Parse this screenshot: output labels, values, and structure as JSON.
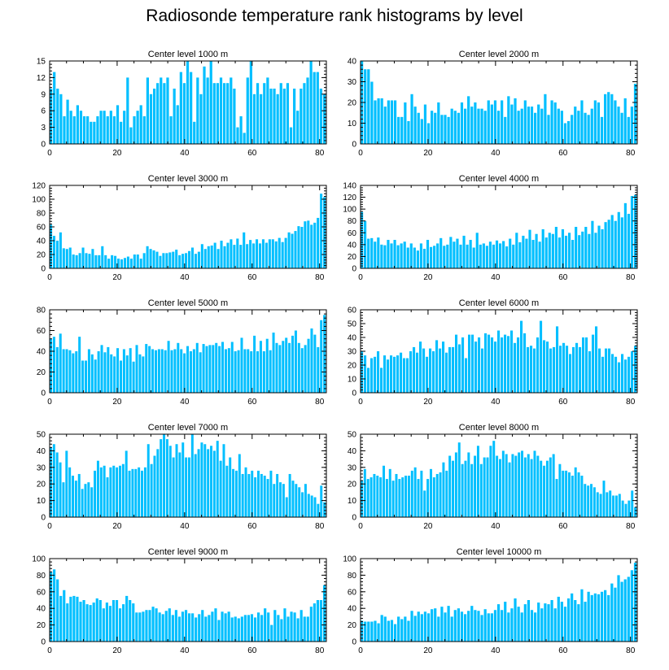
{
  "title": "Radiosonde temperature rank histograms by level",
  "bar_color": "#00bfff",
  "chart_data": [
    {
      "type": "bar",
      "title": "Center level 1000 m",
      "xlim": [
        0,
        82
      ],
      "ylim": [
        0,
        15
      ],
      "xticks": [
        0,
        20,
        40,
        60,
        80
      ],
      "yticks": [
        0,
        3,
        6,
        9,
        12,
        15
      ],
      "values": [
        10,
        13,
        10,
        9,
        5,
        8,
        6,
        5,
        7,
        6,
        5,
        5,
        4,
        4,
        5,
        6,
        6,
        5,
        6,
        5,
        7,
        4,
        6,
        12,
        3,
        5,
        6,
        7,
        5,
        12,
        9,
        10,
        11,
        12,
        11,
        12,
        5,
        10,
        7,
        13,
        11,
        15,
        13,
        4,
        12,
        9,
        14,
        12,
        15,
        11,
        11,
        12,
        11,
        11,
        12,
        10,
        3,
        5,
        2,
        12,
        15,
        9,
        11,
        9,
        11,
        12,
        10,
        10,
        9,
        11,
        10,
        11,
        3,
        10,
        6,
        10,
        11,
        12,
        15,
        13,
        13,
        10,
        9
      ]
    },
    {
      "type": "bar",
      "title": "Center level 2000 m",
      "xlim": [
        0,
        82
      ],
      "ylim": [
        0,
        40
      ],
      "xticks": [
        0,
        20,
        40,
        60,
        80
      ],
      "yticks": [
        0,
        10,
        20,
        30,
        40
      ],
      "values": [
        40,
        36,
        36,
        30,
        21,
        22,
        22,
        18,
        21,
        21,
        21,
        13,
        13,
        20,
        11,
        24,
        18,
        15,
        12,
        19,
        10,
        16,
        15,
        20,
        14,
        14,
        13,
        17,
        16,
        15,
        20,
        17,
        23,
        18,
        20,
        17,
        17,
        16,
        21,
        19,
        21,
        16,
        21,
        13,
        23,
        19,
        22,
        16,
        17,
        21,
        18,
        18,
        15,
        19,
        17,
        24,
        14,
        21,
        20,
        17,
        16,
        10,
        11,
        14,
        18,
        16,
        21,
        15,
        14,
        17,
        21,
        20,
        13,
        24,
        25,
        24,
        21,
        18,
        15,
        22,
        13,
        18,
        29
      ]
    },
    {
      "type": "bar",
      "title": "Center level 3000 m",
      "xlim": [
        0,
        82
      ],
      "ylim": [
        0,
        120
      ],
      "xticks": [
        0,
        20,
        40,
        60,
        80
      ],
      "yticks": [
        0,
        20,
        40,
        60,
        80,
        100,
        120
      ],
      "values": [
        63,
        47,
        40,
        52,
        29,
        28,
        30,
        20,
        19,
        22,
        30,
        22,
        21,
        28,
        19,
        19,
        32,
        19,
        14,
        19,
        18,
        14,
        13,
        15,
        17,
        14,
        20,
        20,
        14,
        22,
        32,
        28,
        26,
        24,
        18,
        22,
        22,
        23,
        24,
        27,
        19,
        21,
        22,
        25,
        30,
        21,
        24,
        35,
        28,
        32,
        33,
        37,
        28,
        40,
        32,
        37,
        42,
        34,
        43,
        34,
        52,
        35,
        41,
        36,
        42,
        36,
        42,
        37,
        42,
        42,
        39,
        44,
        38,
        44,
        52,
        50,
        54,
        61,
        60,
        68,
        69,
        63,
        66,
        73,
        108,
        103
      ]
    },
    {
      "type": "bar",
      "title": "Center level 4000 m",
      "xlim": [
        0,
        82
      ],
      "ylim": [
        0,
        140
      ],
      "xticks": [
        0,
        20,
        40,
        60,
        80
      ],
      "yticks": [
        0,
        20,
        40,
        60,
        80,
        100,
        120,
        140
      ],
      "values": [
        95,
        80,
        50,
        51,
        45,
        52,
        40,
        39,
        48,
        42,
        48,
        39,
        42,
        45,
        35,
        42,
        35,
        30,
        42,
        33,
        48,
        36,
        38,
        42,
        51,
        38,
        40,
        53,
        45,
        50,
        40,
        55,
        40,
        48,
        35,
        60,
        40,
        42,
        38,
        45,
        40,
        47,
        42,
        46,
        37,
        50,
        40,
        60,
        44,
        55,
        50,
        65,
        48,
        58,
        45,
        66,
        52,
        60,
        58,
        70,
        52,
        66,
        55,
        60,
        48,
        70,
        56,
        62,
        70,
        58,
        80,
        60,
        72,
        66,
        78,
        82,
        90,
        80,
        95,
        86,
        110,
        92,
        122,
        124
      ]
    },
    {
      "type": "bar",
      "title": "Center level 5000 m",
      "xlim": [
        0,
        82
      ],
      "ylim": [
        0,
        80
      ],
      "xticks": [
        0,
        20,
        40,
        60,
        80
      ],
      "yticks": [
        0,
        20,
        40,
        60,
        80
      ],
      "values": [
        52,
        54,
        44,
        57,
        42,
        42,
        41,
        38,
        40,
        54,
        31,
        31,
        42,
        37,
        32,
        40,
        46,
        39,
        44,
        37,
        35,
        43,
        31,
        42,
        36,
        43,
        30,
        46,
        37,
        35,
        47,
        45,
        42,
        41,
        42,
        42,
        41,
        50,
        41,
        42,
        48,
        42,
        38,
        45,
        40,
        42,
        48,
        39,
        47,
        45,
        46,
        46,
        48,
        45,
        49,
        42,
        43,
        49,
        40,
        41,
        53,
        42,
        42,
        40,
        55,
        40,
        50,
        40,
        52,
        41,
        58,
        48,
        46,
        50,
        53,
        48,
        55,
        60,
        48,
        43,
        46,
        52,
        62,
        56,
        44,
        70,
        75
      ]
    },
    {
      "type": "bar",
      "title": "Center level 6000 m",
      "xlim": [
        0,
        82
      ],
      "ylim": [
        0,
        60
      ],
      "xticks": [
        0,
        20,
        40,
        60,
        80
      ],
      "yticks": [
        0,
        10,
        20,
        30,
        40,
        50,
        60
      ],
      "values": [
        30,
        27,
        18,
        25,
        26,
        30,
        18,
        27,
        24,
        27,
        26,
        27,
        29,
        25,
        25,
        30,
        33,
        29,
        37,
        32,
        26,
        32,
        30,
        38,
        32,
        37,
        29,
        33,
        33,
        42,
        35,
        40,
        25,
        42,
        42,
        37,
        40,
        32,
        43,
        42,
        40,
        37,
        45,
        40,
        42,
        41,
        45,
        36,
        40,
        52,
        43,
        33,
        34,
        32,
        40,
        52,
        38,
        37,
        32,
        33,
        48,
        34,
        36,
        34,
        28,
        33,
        36,
        33,
        40,
        40,
        30,
        42,
        48,
        32,
        26,
        32,
        32,
        28,
        26,
        22,
        28,
        24,
        26,
        30,
        34
      ]
    },
    {
      "type": "bar",
      "title": "Center level 7000 m",
      "xlim": [
        0,
        82
      ],
      "ylim": [
        0,
        50
      ],
      "xticks": [
        0,
        20,
        40,
        60,
        80
      ],
      "yticks": [
        0,
        10,
        20,
        30,
        40,
        50
      ],
      "values": [
        42,
        44,
        39,
        33,
        21,
        40,
        30,
        25,
        22,
        26,
        17,
        20,
        21,
        18,
        28,
        34,
        30,
        31,
        24,
        30,
        31,
        30,
        31,
        32,
        40,
        28,
        29,
        29,
        30,
        28,
        30,
        44,
        32,
        37,
        41,
        47,
        50,
        47,
        43,
        36,
        44,
        39,
        45,
        36,
        36,
        50,
        38,
        41,
        45,
        44,
        41,
        43,
        40,
        46,
        34,
        44,
        31,
        36,
        29,
        28,
        38,
        26,
        30,
        26,
        28,
        24,
        28,
        26,
        25,
        23,
        28,
        20,
        26,
        21,
        20,
        12,
        26,
        22,
        20,
        18,
        15,
        20,
        14,
        13,
        12,
        8,
        19,
        9
      ]
    },
    {
      "type": "bar",
      "title": "Center level 8000 m",
      "xlim": [
        0,
        82
      ],
      "ylim": [
        0,
        50
      ],
      "xticks": [
        0,
        20,
        40,
        60,
        80
      ],
      "yticks": [
        0,
        10,
        20,
        30,
        40,
        50
      ],
      "values": [
        22,
        29,
        23,
        24,
        26,
        25,
        24,
        31,
        23,
        29,
        22,
        26,
        23,
        24,
        25,
        25,
        28,
        30,
        23,
        28,
        16,
        23,
        29,
        24,
        26,
        27,
        33,
        28,
        37,
        34,
        39,
        45,
        32,
        34,
        39,
        32,
        37,
        43,
        32,
        36,
        36,
        43,
        46,
        37,
        35,
        40,
        38,
        33,
        38,
        37,
        39,
        40,
        36,
        38,
        35,
        40,
        37,
        34,
        31,
        34,
        36,
        38,
        23,
        32,
        28,
        28,
        27,
        25,
        30,
        27,
        25,
        20,
        19,
        20,
        18,
        15,
        14,
        22,
        15,
        16,
        13,
        13,
        14,
        10,
        8,
        10,
        16,
        6
      ]
    },
    {
      "type": "bar",
      "title": "Center level 9000 m",
      "xlim": [
        0,
        82
      ],
      "ylim": [
        0,
        100
      ],
      "xticks": [
        0,
        20,
        40,
        60,
        80
      ],
      "yticks": [
        0,
        20,
        40,
        60,
        80,
        100
      ],
      "values": [
        84,
        87,
        75,
        55,
        62,
        46,
        54,
        55,
        54,
        48,
        50,
        45,
        44,
        47,
        52,
        50,
        40,
        47,
        43,
        50,
        50,
        40,
        45,
        55,
        50,
        46,
        35,
        35,
        36,
        38,
        38,
        42,
        40,
        35,
        33,
        37,
        40,
        32,
        38,
        30,
        36,
        38,
        34,
        34,
        29,
        33,
        38,
        30,
        32,
        36,
        40,
        26,
        36,
        34,
        36,
        29,
        30,
        28,
        30,
        32,
        32,
        33,
        29,
        35,
        32,
        40,
        35,
        20,
        38,
        32,
        27,
        40,
        30,
        36,
        35,
        28,
        38,
        30,
        30,
        42,
        46,
        50,
        50,
        68
      ]
    },
    {
      "type": "bar",
      "title": "Center level 10000 m",
      "xlim": [
        0,
        82
      ],
      "ylim": [
        0,
        100
      ],
      "xticks": [
        0,
        20,
        40,
        60,
        80
      ],
      "yticks": [
        0,
        20,
        40,
        60,
        80,
        100
      ],
      "values": [
        25,
        24,
        24,
        24,
        25,
        22,
        32,
        30,
        25,
        26,
        21,
        30,
        27,
        30,
        25,
        37,
        31,
        36,
        33,
        36,
        34,
        39,
        40,
        30,
        42,
        35,
        43,
        30,
        38,
        40,
        36,
        33,
        37,
        43,
        38,
        37,
        32,
        39,
        34,
        34,
        38,
        45,
        38,
        48,
        35,
        40,
        52,
        42,
        35,
        45,
        50,
        38,
        35,
        47,
        40,
        46,
        45,
        50,
        40,
        54,
        48,
        42,
        52,
        58,
        50,
        45,
        63,
        48,
        60,
        56,
        58,
        57,
        60,
        62,
        56,
        70,
        65,
        80,
        72,
        75,
        78,
        86,
        95
      ]
    }
  ]
}
